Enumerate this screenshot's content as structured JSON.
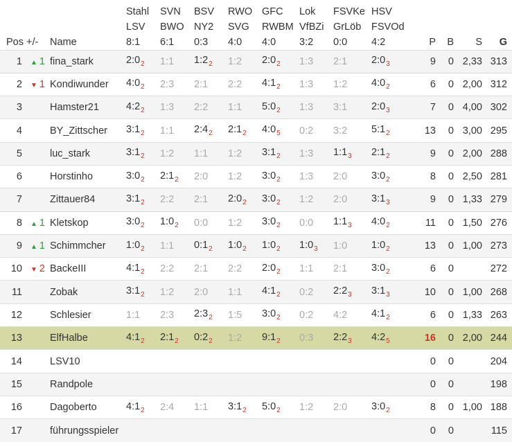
{
  "header": {
    "pos": "Pos",
    "change": "+/-",
    "name": "Name",
    "matches": [
      {
        "home": "Stahl",
        "away": "LSV",
        "score": "8:1"
      },
      {
        "home": "SVN",
        "away": "BWO",
        "score": "6:1"
      },
      {
        "home": "BSV",
        "away": "NY2",
        "score": "0:3"
      },
      {
        "home": "RWO",
        "away": "SVG",
        "score": "4:0"
      },
      {
        "home": "GFC",
        "away": "RWBM",
        "score": "4:0"
      },
      {
        "home": "Lok",
        "away": "VfBZi",
        "score": "3:2"
      },
      {
        "home": "FSVKe",
        "away": "GrLöb",
        "score": "0:0"
      },
      {
        "home": "HSV",
        "away": "FSVOd",
        "score": "4:2"
      }
    ],
    "p": "P",
    "b": "B",
    "s": "S",
    "g": "G"
  },
  "rows": [
    {
      "pos": "1",
      "dir": "up",
      "change": "1",
      "name": "fina_stark",
      "tips": [
        {
          "t": "2:0",
          "pts": "2",
          "on": true
        },
        {
          "t": "1:1",
          "on": false
        },
        {
          "t": "1:2",
          "pts": "2",
          "on": true
        },
        {
          "t": "1:2",
          "on": false
        },
        {
          "t": "2:0",
          "pts": "2",
          "on": true
        },
        {
          "t": "1:3",
          "on": false
        },
        {
          "t": "2:1",
          "on": false
        },
        {
          "t": "2:0",
          "pts": "3",
          "on": true
        }
      ],
      "p": "9",
      "b": "0",
      "s": "2,33",
      "g": "313"
    },
    {
      "pos": "2",
      "dir": "down",
      "change": "1",
      "name": "Kondiwunder",
      "tips": [
        {
          "t": "4:0",
          "pts": "2",
          "on": true
        },
        {
          "t": "2:3",
          "on": false
        },
        {
          "t": "2:1",
          "on": false
        },
        {
          "t": "2:2",
          "on": false
        },
        {
          "t": "4:1",
          "pts": "2",
          "on": true
        },
        {
          "t": "1:3",
          "on": false
        },
        {
          "t": "1:2",
          "on": false
        },
        {
          "t": "4:0",
          "pts": "2",
          "on": true
        }
      ],
      "p": "6",
      "b": "0",
      "s": "2,00",
      "g": "312"
    },
    {
      "pos": "3",
      "dir": "",
      "change": "",
      "name": "Hamster21",
      "tips": [
        {
          "t": "4:2",
          "pts": "2",
          "on": true
        },
        {
          "t": "1:3",
          "on": false
        },
        {
          "t": "2:2",
          "on": false
        },
        {
          "t": "1:1",
          "on": false
        },
        {
          "t": "5:0",
          "pts": "2",
          "on": true
        },
        {
          "t": "1:3",
          "on": false
        },
        {
          "t": "3:1",
          "on": false
        },
        {
          "t": "2:0",
          "pts": "3",
          "on": true
        }
      ],
      "p": "7",
      "b": "0",
      "s": "4,00",
      "g": "302"
    },
    {
      "pos": "4",
      "dir": "",
      "change": "",
      "name": "BY_Zittscher",
      "tips": [
        {
          "t": "3:1",
          "pts": "2",
          "on": true
        },
        {
          "t": "1:1",
          "on": false
        },
        {
          "t": "2:4",
          "pts": "2",
          "on": true
        },
        {
          "t": "2:1",
          "pts": "2",
          "on": true
        },
        {
          "t": "4:0",
          "pts": "5",
          "on": true
        },
        {
          "t": "0:2",
          "on": false
        },
        {
          "t": "3:2",
          "on": false
        },
        {
          "t": "5:1",
          "pts": "2",
          "on": true
        }
      ],
      "p": "13",
      "b": "0",
      "s": "3,00",
      "g": "295"
    },
    {
      "pos": "5",
      "dir": "",
      "change": "",
      "name": "luc_stark",
      "tips": [
        {
          "t": "3:1",
          "pts": "2",
          "on": true
        },
        {
          "t": "1:2",
          "on": false
        },
        {
          "t": "1:1",
          "on": false
        },
        {
          "t": "1:2",
          "on": false
        },
        {
          "t": "3:1",
          "pts": "2",
          "on": true
        },
        {
          "t": "1:3",
          "on": false
        },
        {
          "t": "1:1",
          "pts": "3",
          "on": true
        },
        {
          "t": "2:1",
          "pts": "2",
          "on": true
        }
      ],
      "p": "9",
      "b": "0",
      "s": "2,00",
      "g": "288"
    },
    {
      "pos": "6",
      "dir": "",
      "change": "",
      "name": "Horstinho",
      "tips": [
        {
          "t": "3:0",
          "pts": "2",
          "on": true
        },
        {
          "t": "2:1",
          "pts": "2",
          "on": true
        },
        {
          "t": "2:0",
          "on": false
        },
        {
          "t": "1:2",
          "on": false
        },
        {
          "t": "3:0",
          "pts": "2",
          "on": true
        },
        {
          "t": "1:3",
          "on": false
        },
        {
          "t": "2:0",
          "on": false
        },
        {
          "t": "3:0",
          "pts": "2",
          "on": true
        }
      ],
      "p": "8",
      "b": "0",
      "s": "2,50",
      "g": "281"
    },
    {
      "pos": "7",
      "dir": "",
      "change": "",
      "name": "Zittauer84",
      "tips": [
        {
          "t": "3:1",
          "pts": "2",
          "on": true
        },
        {
          "t": "2:2",
          "on": false
        },
        {
          "t": "2:1",
          "on": false
        },
        {
          "t": "2:0",
          "pts": "2",
          "on": true
        },
        {
          "t": "3:0",
          "pts": "2",
          "on": true
        },
        {
          "t": "1:2",
          "on": false
        },
        {
          "t": "2:0",
          "on": false
        },
        {
          "t": "3:1",
          "pts": "3",
          "on": true
        }
      ],
      "p": "9",
      "b": "0",
      "s": "1,33",
      "g": "279"
    },
    {
      "pos": "8",
      "dir": "up",
      "change": "1",
      "name": "Kletskop",
      "tips": [
        {
          "t": "3:0",
          "pts": "2",
          "on": true
        },
        {
          "t": "1:0",
          "pts": "2",
          "on": true
        },
        {
          "t": "0:0",
          "on": false
        },
        {
          "t": "1:2",
          "on": false
        },
        {
          "t": "3:0",
          "pts": "2",
          "on": true
        },
        {
          "t": "0:0",
          "on": false
        },
        {
          "t": "1:1",
          "pts": "3",
          "on": true
        },
        {
          "t": "4:0",
          "pts": "2",
          "on": true
        }
      ],
      "p": "11",
      "b": "0",
      "s": "1,50",
      "g": "276"
    },
    {
      "pos": "9",
      "dir": "up",
      "change": "1",
      "name": "Schimmcher",
      "tips": [
        {
          "t": "1:0",
          "pts": "2",
          "on": true
        },
        {
          "t": "1:1",
          "on": false
        },
        {
          "t": "0:1",
          "pts": "2",
          "on": true
        },
        {
          "t": "1:0",
          "pts": "2",
          "on": true
        },
        {
          "t": "1:0",
          "pts": "2",
          "on": true
        },
        {
          "t": "1:0",
          "pts": "3",
          "on": true
        },
        {
          "t": "1:0",
          "on": false
        },
        {
          "t": "1:0",
          "pts": "2",
          "on": true
        }
      ],
      "p": "13",
      "b": "0",
      "s": "1,00",
      "g": "273"
    },
    {
      "pos": "10",
      "dir": "down",
      "change": "2",
      "name": "BackeIII",
      "tips": [
        {
          "t": "4:1",
          "pts": "2",
          "on": true
        },
        {
          "t": "2:2",
          "on": false
        },
        {
          "t": "2:1",
          "on": false
        },
        {
          "t": "2:2",
          "on": false
        },
        {
          "t": "2:0",
          "pts": "2",
          "on": true
        },
        {
          "t": "1:1",
          "on": false
        },
        {
          "t": "2:1",
          "on": false
        },
        {
          "t": "3:0",
          "pts": "2",
          "on": true
        }
      ],
      "p": "6",
      "b": "0",
      "s": "",
      "g": "272"
    },
    {
      "pos": "11",
      "dir": "",
      "change": "",
      "name": "Zobak",
      "tips": [
        {
          "t": "3:1",
          "pts": "2",
          "on": true
        },
        {
          "t": "1:2",
          "on": false
        },
        {
          "t": "2:0",
          "on": false
        },
        {
          "t": "1:1",
          "on": false
        },
        {
          "t": "4:1",
          "pts": "2",
          "on": true
        },
        {
          "t": "0:2",
          "on": false
        },
        {
          "t": "2:2",
          "pts": "3",
          "on": true
        },
        {
          "t": "3:1",
          "pts": "3",
          "on": true
        }
      ],
      "p": "10",
      "b": "0",
      "s": "1,00",
      "g": "268"
    },
    {
      "pos": "12",
      "dir": "",
      "change": "",
      "name": "Schlesier",
      "tips": [
        {
          "t": "1:1",
          "on": false
        },
        {
          "t": "2:3",
          "on": false
        },
        {
          "t": "2:3",
          "pts": "2",
          "on": true
        },
        {
          "t": "1:5",
          "on": false
        },
        {
          "t": "3:0",
          "pts": "2",
          "on": true
        },
        {
          "t": "0:2",
          "on": false
        },
        {
          "t": "4:2",
          "on": false
        },
        {
          "t": "4:1",
          "pts": "2",
          "on": true
        }
      ],
      "p": "6",
      "b": "0",
      "s": "1,33",
      "g": "263"
    },
    {
      "pos": "13",
      "dir": "",
      "change": "",
      "name": "ElfHalbe",
      "highlight": true,
      "tips": [
        {
          "t": "4:1",
          "pts": "2",
          "on": true
        },
        {
          "t": "2:1",
          "pts": "2",
          "on": true
        },
        {
          "t": "0:2",
          "pts": "2",
          "on": true
        },
        {
          "t": "1:2",
          "on": false
        },
        {
          "t": "9:1",
          "pts": "2",
          "on": true
        },
        {
          "t": "0:3",
          "on": false
        },
        {
          "t": "2:2",
          "pts": "3",
          "on": true
        },
        {
          "t": "4:2",
          "pts": "5",
          "on": true
        }
      ],
      "p": "16",
      "b": "0",
      "s": "2,00",
      "g": "244"
    },
    {
      "pos": "14",
      "dir": "",
      "change": "",
      "name": "LSV10",
      "tips": [],
      "p": "0",
      "b": "0",
      "s": "",
      "g": "204"
    },
    {
      "pos": "15",
      "dir": "",
      "change": "",
      "name": "Randpole",
      "tips": [],
      "p": "0",
      "b": "0",
      "s": "",
      "g": "198"
    },
    {
      "pos": "16",
      "dir": "",
      "change": "",
      "name": "Dagoberto",
      "tips": [
        {
          "t": "4:1",
          "pts": "2",
          "on": true
        },
        {
          "t": "2:4",
          "on": false
        },
        {
          "t": "1:1",
          "on": false
        },
        {
          "t": "3:1",
          "pts": "2",
          "on": true
        },
        {
          "t": "5:0",
          "pts": "2",
          "on": true
        },
        {
          "t": "1:2",
          "on": false
        },
        {
          "t": "2:0",
          "on": false
        },
        {
          "t": "3:0",
          "pts": "2",
          "on": true
        }
      ],
      "p": "8",
      "b": "0",
      "s": "1,00",
      "g": "188"
    },
    {
      "pos": "17",
      "dir": "",
      "change": "",
      "name": "führungsspieler",
      "tips": [],
      "p": "0",
      "b": "0",
      "s": "",
      "g": "115"
    }
  ],
  "colors": {
    "up": "#2e9e3a",
    "down": "#c0392b",
    "points": "#c0392b",
    "highlight_row": "#d6d9a3",
    "faded": "#aaaaaa"
  },
  "icons": {
    "up": "triangle-up-icon",
    "down": "triangle-down-icon"
  }
}
